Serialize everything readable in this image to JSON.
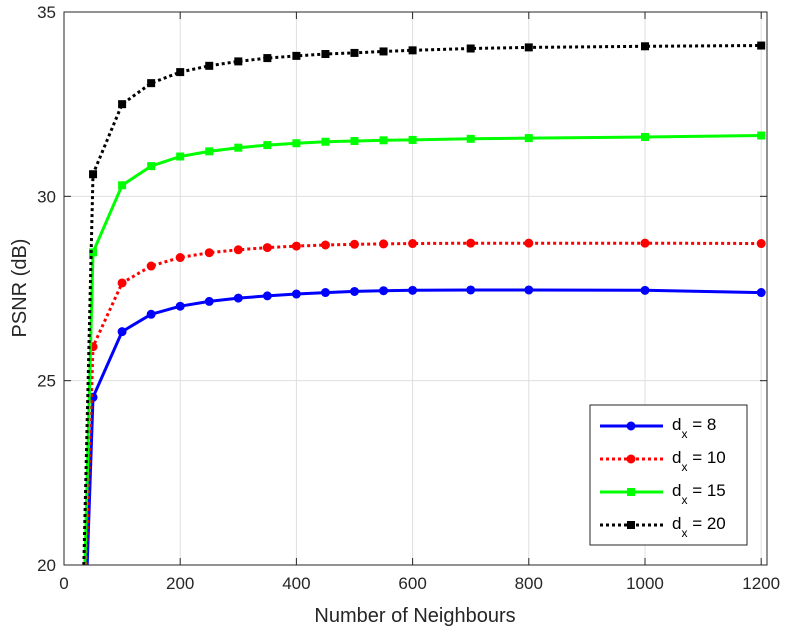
{
  "chart_data": {
    "type": "line",
    "xlabel": "Number of Neighbours",
    "ylabel": "PSNR (dB)",
    "xlim": [
      0,
      1210
    ],
    "ylim": [
      20,
      35
    ],
    "xticks": [
      0,
      200,
      400,
      600,
      800,
      1000,
      1200
    ],
    "yticks": [
      20,
      25,
      30,
      35
    ],
    "xtick_labels": [
      "0",
      "200",
      "400",
      "600",
      "800",
      "1000",
      "1200"
    ],
    "ytick_labels": [
      "20",
      "25",
      "30",
      "35"
    ],
    "grid": true,
    "legend_position": "bottom-right",
    "series": [
      {
        "legend_main": "d",
        "legend_sub": "x",
        "legend_rest": " = 8",
        "color": "#0000ff",
        "style": "solid",
        "marker": "circle",
        "x": [
          40,
          50,
          100,
          150,
          200,
          250,
          300,
          350,
          400,
          450,
          500,
          550,
          600,
          700,
          800,
          1000,
          1200
        ],
        "y": [
          20.0,
          24.55,
          26.33,
          26.8,
          27.02,
          27.15,
          27.24,
          27.3,
          27.35,
          27.39,
          27.42,
          27.44,
          27.45,
          27.46,
          27.46,
          27.45,
          27.39
        ]
      },
      {
        "legend_main": "d",
        "legend_sub": "x",
        "legend_rest": " = 10",
        "color": "#ff0000",
        "style": "dotted",
        "marker": "circle",
        "x": [
          38,
          50,
          100,
          150,
          200,
          250,
          300,
          350,
          400,
          450,
          500,
          550,
          600,
          700,
          800,
          1000,
          1200
        ],
        "y": [
          20.0,
          25.92,
          27.65,
          28.11,
          28.34,
          28.47,
          28.55,
          28.61,
          28.65,
          28.68,
          28.7,
          28.71,
          28.72,
          28.73,
          28.73,
          28.73,
          28.72
        ]
      },
      {
        "legend_main": "d",
        "legend_sub": "x",
        "legend_rest": " = 15",
        "color": "#00ff00",
        "style": "solid",
        "marker": "square",
        "x": [
          36,
          50,
          100,
          150,
          200,
          250,
          300,
          350,
          400,
          450,
          500,
          550,
          600,
          700,
          800,
          1000,
          1200
        ],
        "y": [
          20.0,
          28.48,
          30.3,
          30.82,
          31.08,
          31.22,
          31.32,
          31.39,
          31.44,
          31.48,
          31.5,
          31.52,
          31.53,
          31.56,
          31.58,
          31.61,
          31.65
        ]
      },
      {
        "legend_main": "d",
        "legend_sub": "x",
        "legend_rest": " = 20",
        "color": "#000000",
        "style": "dotted",
        "marker": "square",
        "x": [
          34,
          50,
          100,
          150,
          200,
          250,
          300,
          350,
          400,
          450,
          500,
          550,
          600,
          700,
          800,
          1000,
          1200
        ],
        "y": [
          20.0,
          30.6,
          32.5,
          33.07,
          33.37,
          33.54,
          33.66,
          33.75,
          33.81,
          33.86,
          33.89,
          33.93,
          33.96,
          34.01,
          34.04,
          34.07,
          34.09
        ]
      }
    ]
  }
}
